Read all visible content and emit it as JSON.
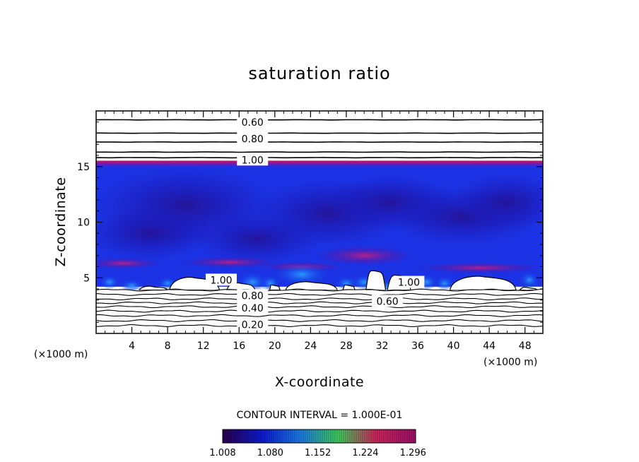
{
  "chart_data": {
    "type": "contour",
    "title": "saturation ratio",
    "xlabel": "X-coordinate",
    "ylabel": "Z-coordinate",
    "x_unit": "(×1000 m)",
    "y_unit": "(×1000 m)",
    "xlim": [
      0,
      50
    ],
    "ylim": [
      0,
      20
    ],
    "x_ticks": [
      "4",
      "8",
      "12",
      "16",
      "20",
      "24",
      "28",
      "32",
      "36",
      "40",
      "44",
      "48"
    ],
    "y_ticks": [
      "5",
      "10",
      "15"
    ],
    "contour_interval_text": "CONTOUR INTERVAL = 1.000E-01",
    "contour_labels": [
      {
        "text": "0.60",
        "x": 17.5,
        "z": 19.0
      },
      {
        "text": "0.80",
        "x": 17.5,
        "z": 17.5
      },
      {
        "text": "1.00",
        "x": 17.5,
        "z": 15.6
      },
      {
        "text": "1.00",
        "x": 14.0,
        "z": 4.8
      },
      {
        "text": "1.00",
        "x": 35.0,
        "z": 4.6
      },
      {
        "text": "0.80",
        "x": 17.5,
        "z": 3.4
      },
      {
        "text": "0.40",
        "x": 17.5,
        "z": 2.3
      },
      {
        "text": "0.60",
        "x": 32.6,
        "z": 2.9
      },
      {
        "text": "0.20",
        "x": 17.5,
        "z": 0.8
      }
    ],
    "upper_contours_z": [
      19.2,
      18.0,
      17.2,
      16.3,
      15.8
    ],
    "lower_contours_z": [
      3.9,
      3.5,
      3.1,
      2.75,
      2.4,
      2.0,
      1.6,
      1.15,
      0.7
    ],
    "cloud_top_z": 15.4,
    "colorbar": {
      "min": 1.008,
      "max": 1.3,
      "labels": [
        "1.008",
        "1.080",
        "1.152",
        "1.224",
        "1.296"
      ],
      "colors": [
        "#2a0055",
        "#0c1ad6",
        "#1b7ce9",
        "#3fcf5c",
        "#d3245e",
        "#a0106a"
      ]
    }
  }
}
